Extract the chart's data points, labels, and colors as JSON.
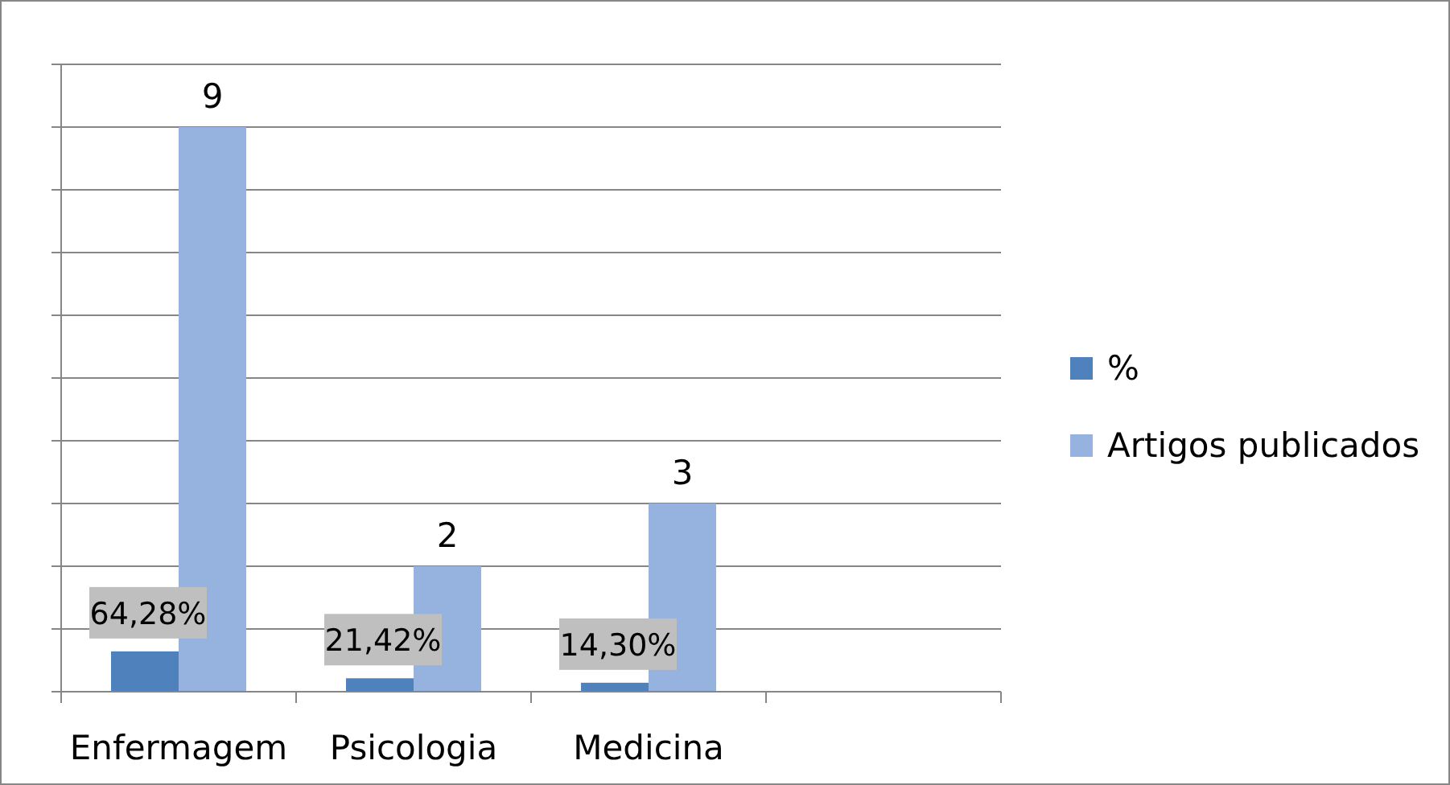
{
  "chart_data": {
    "type": "bar",
    "categories": [
      "Enfermagem",
      "Psicologia",
      "Medicina",
      null
    ],
    "series": [
      {
        "name": "%",
        "color": "#4f81bd",
        "values": [
          0.6428,
          0.2142,
          0.143,
          null
        ],
        "value_labels": [
          "64,28%",
          "21,42%",
          "14,30%",
          null
        ]
      },
      {
        "name": "Artigos publicados",
        "color": "#95b3de",
        "values": [
          9,
          2,
          3,
          null
        ],
        "value_labels": [
          "9",
          "2",
          "3",
          null
        ]
      }
    ],
    "ylim": [
      0,
      10
    ],
    "yticks": [
      {
        "value": 0,
        "label": null
      },
      {
        "value": 1,
        "label": null
      },
      {
        "value": 2,
        "label": null
      },
      {
        "value": 3,
        "label": null
      },
      {
        "value": 4,
        "label": null
      },
      {
        "value": 5,
        "label": null
      },
      {
        "value": 6,
        "label": null
      },
      {
        "value": 7,
        "label": null
      },
      {
        "value": 8,
        "label": null
      },
      {
        "value": 9,
        "label": null
      },
      {
        "value": 10,
        "label": null
      }
    ],
    "grid": "y",
    "legend": "right",
    "tick_labels": "x"
  }
}
